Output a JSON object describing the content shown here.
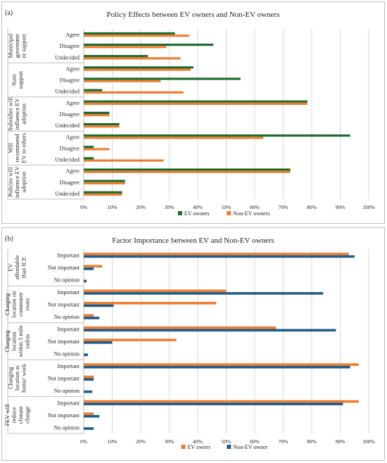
{
  "chart_data": [
    {
      "type": "bar",
      "orientation": "horizontal",
      "panel_label": "(a)",
      "title": "Policy Effects between EV owners and Non-EV owners",
      "xlim": [
        0,
        100
      ],
      "x_ticks": [
        "0%",
        "10%",
        "20%",
        "30%",
        "40%",
        "50%",
        "60%",
        "70%",
        "80%",
        "90%",
        "100%"
      ],
      "grid": true,
      "legend_position": "bottom",
      "series": [
        {
          "name": "EV owners",
          "color": "#1e6b2e"
        },
        {
          "name": "Non-EV owners",
          "color": "#ed7d31"
        }
      ],
      "groups": [
        {
          "label": "Municipal government support",
          "label_lines": [
            "Municipal",
            "governme",
            "nt support"
          ],
          "categories": [
            "Agree",
            "Disagree",
            "Undecided"
          ],
          "values": {
            "EV owners": [
              32,
              45.5,
              22.5
            ],
            "Non-EV owners": [
              37,
              29,
              34
            ]
          }
        },
        {
          "label": "State support",
          "label_lines": [
            "State",
            "support"
          ],
          "categories": [
            "Agree",
            "Disagree",
            "Undecided"
          ],
          "values": {
            "EV owners": [
              38.5,
              55,
              6.5
            ],
            "Non-EV owners": [
              37.5,
              27,
              35
            ]
          }
        },
        {
          "label": "Subsidies will influence EV adoption",
          "label_lines": [
            "Subsidies will",
            "influence EV",
            "adoption"
          ],
          "categories": [
            "Agree",
            "Disagree",
            "Undecided"
          ],
          "values": {
            "EV owners": [
              78.5,
              9,
              12.5
            ],
            "Non-EV owners": [
              78.5,
              9,
              12.5
            ]
          }
        },
        {
          "label": "Will recommend EV to others",
          "label_lines": [
            "Will",
            "recommend",
            "EV to others"
          ],
          "categories": [
            "Agree",
            "Disagree",
            "Undecided"
          ],
          "values": {
            "EV owners": [
              93.5,
              3.5,
              3.5
            ],
            "Non-EV owners": [
              63,
              9,
              28
            ]
          }
        },
        {
          "label": "Policies will influence EV adoption",
          "label_lines": [
            "Policies will",
            "influence EV",
            "adoption"
          ],
          "categories": [
            "Agree",
            "Disagree",
            "Undecided"
          ],
          "values": {
            "EV owners": [
              72.5,
              14.5,
              13.5
            ],
            "Non-EV owners": [
              72.5,
              14.5,
              13.5
            ]
          }
        }
      ]
    },
    {
      "type": "bar",
      "orientation": "horizontal",
      "panel_label": "(b)",
      "title": "Factor Importance between EV and Non-EV owners",
      "xlim": [
        0,
        100
      ],
      "x_ticks": [
        "0%",
        "10%",
        "20%",
        "30%",
        "40%",
        "50%",
        "60%",
        "70%",
        "80%",
        "90%",
        "100%"
      ],
      "grid": true,
      "legend_position": "bottom",
      "series": [
        {
          "name": "EV owner",
          "color": "#ed7d31"
        },
        {
          "name": "Non-EV owner",
          "color": "#1f5c87"
        }
      ],
      "groups": [
        {
          "label": "EV affordable than ICE",
          "label_lines": [
            "EV",
            "affordable",
            "than ICE"
          ],
          "categories": [
            "Important",
            "Not important",
            "No opinion"
          ],
          "values": {
            "EV owner": [
              93,
              6.5,
              0
            ],
            "Non-EV owner": [
              95,
              3.5,
              1
            ]
          }
        },
        {
          "label": "Charging location on commuter route",
          "label_lines": [
            "Charging",
            "location on",
            "commuter",
            "route"
          ],
          "categories": [
            "Important",
            "Not important",
            "No opinion"
          ],
          "values": {
            "EV owner": [
              50,
              46.5,
              3.5
            ],
            "Non-EV owner": [
              84,
              10.5,
              5.5
            ]
          }
        },
        {
          "label": "Charging location within 5 mile radius",
          "label_lines": [
            "Charging",
            "location",
            "within 5 mile",
            "radius"
          ],
          "categories": [
            "Important",
            "Not important",
            "No opinion"
          ],
          "values": {
            "EV owner": [
              67.5,
              32.5,
              0
            ],
            "Non-EV owner": [
              88.5,
              10,
              1.5
            ]
          }
        },
        {
          "label": "Charging location at home/ work",
          "label_lines": [
            "Charging",
            "location at",
            "home/ work"
          ],
          "categories": [
            "Important",
            "Not important",
            "No opinion"
          ],
          "values": {
            "EV owner": [
              96.5,
              3.5,
              0
            ],
            "Non-EV owner": [
              93.5,
              3.5,
              3
            ]
          }
        },
        {
          "label": "FEV will reduce climate change",
          "label_lines": [
            "FEV will",
            "reduce",
            "climate",
            "change"
          ],
          "categories": [
            "Important",
            "Not important",
            "No opinion"
          ],
          "values": {
            "EV owner": [
              96.5,
              3.5,
              0
            ],
            "Non-EV owner": [
              91,
              5.5,
              3.5
            ]
          }
        }
      ]
    }
  ]
}
